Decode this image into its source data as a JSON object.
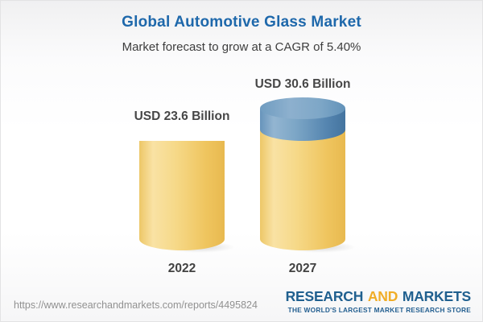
{
  "chart_data": {
    "type": "bar",
    "bar_style": "3d-cylinder",
    "title": "Global Automotive Glass Market",
    "subtitle": "Market forecast to grow at a CAGR of 5.40%",
    "cagr": "5.40%",
    "unit": "USD Billion",
    "categories": [
      "2022",
      "2027"
    ],
    "values": [
      23.6,
      30.6
    ],
    "value_labels": [
      "USD 23.6 Billion",
      "USD 30.6 Billion"
    ],
    "growth_overlay": {
      "applies_to": "2027",
      "value": 7.0
    },
    "colors": {
      "base_bar": "#f3cf76",
      "growth_cap": "#6493ba",
      "title_text": "#1e68ab",
      "label_text": "#474747"
    },
    "legend_position": "none",
    "grid": false
  },
  "footer": {
    "url": "https://www.researchandmarkets.com/reports/4495824",
    "logo": {
      "part1": "RESEARCH",
      "part2": "AND",
      "part3": "MARKETS",
      "tagline": "THE WORLD'S LARGEST MARKET RESEARCH STORE"
    }
  }
}
